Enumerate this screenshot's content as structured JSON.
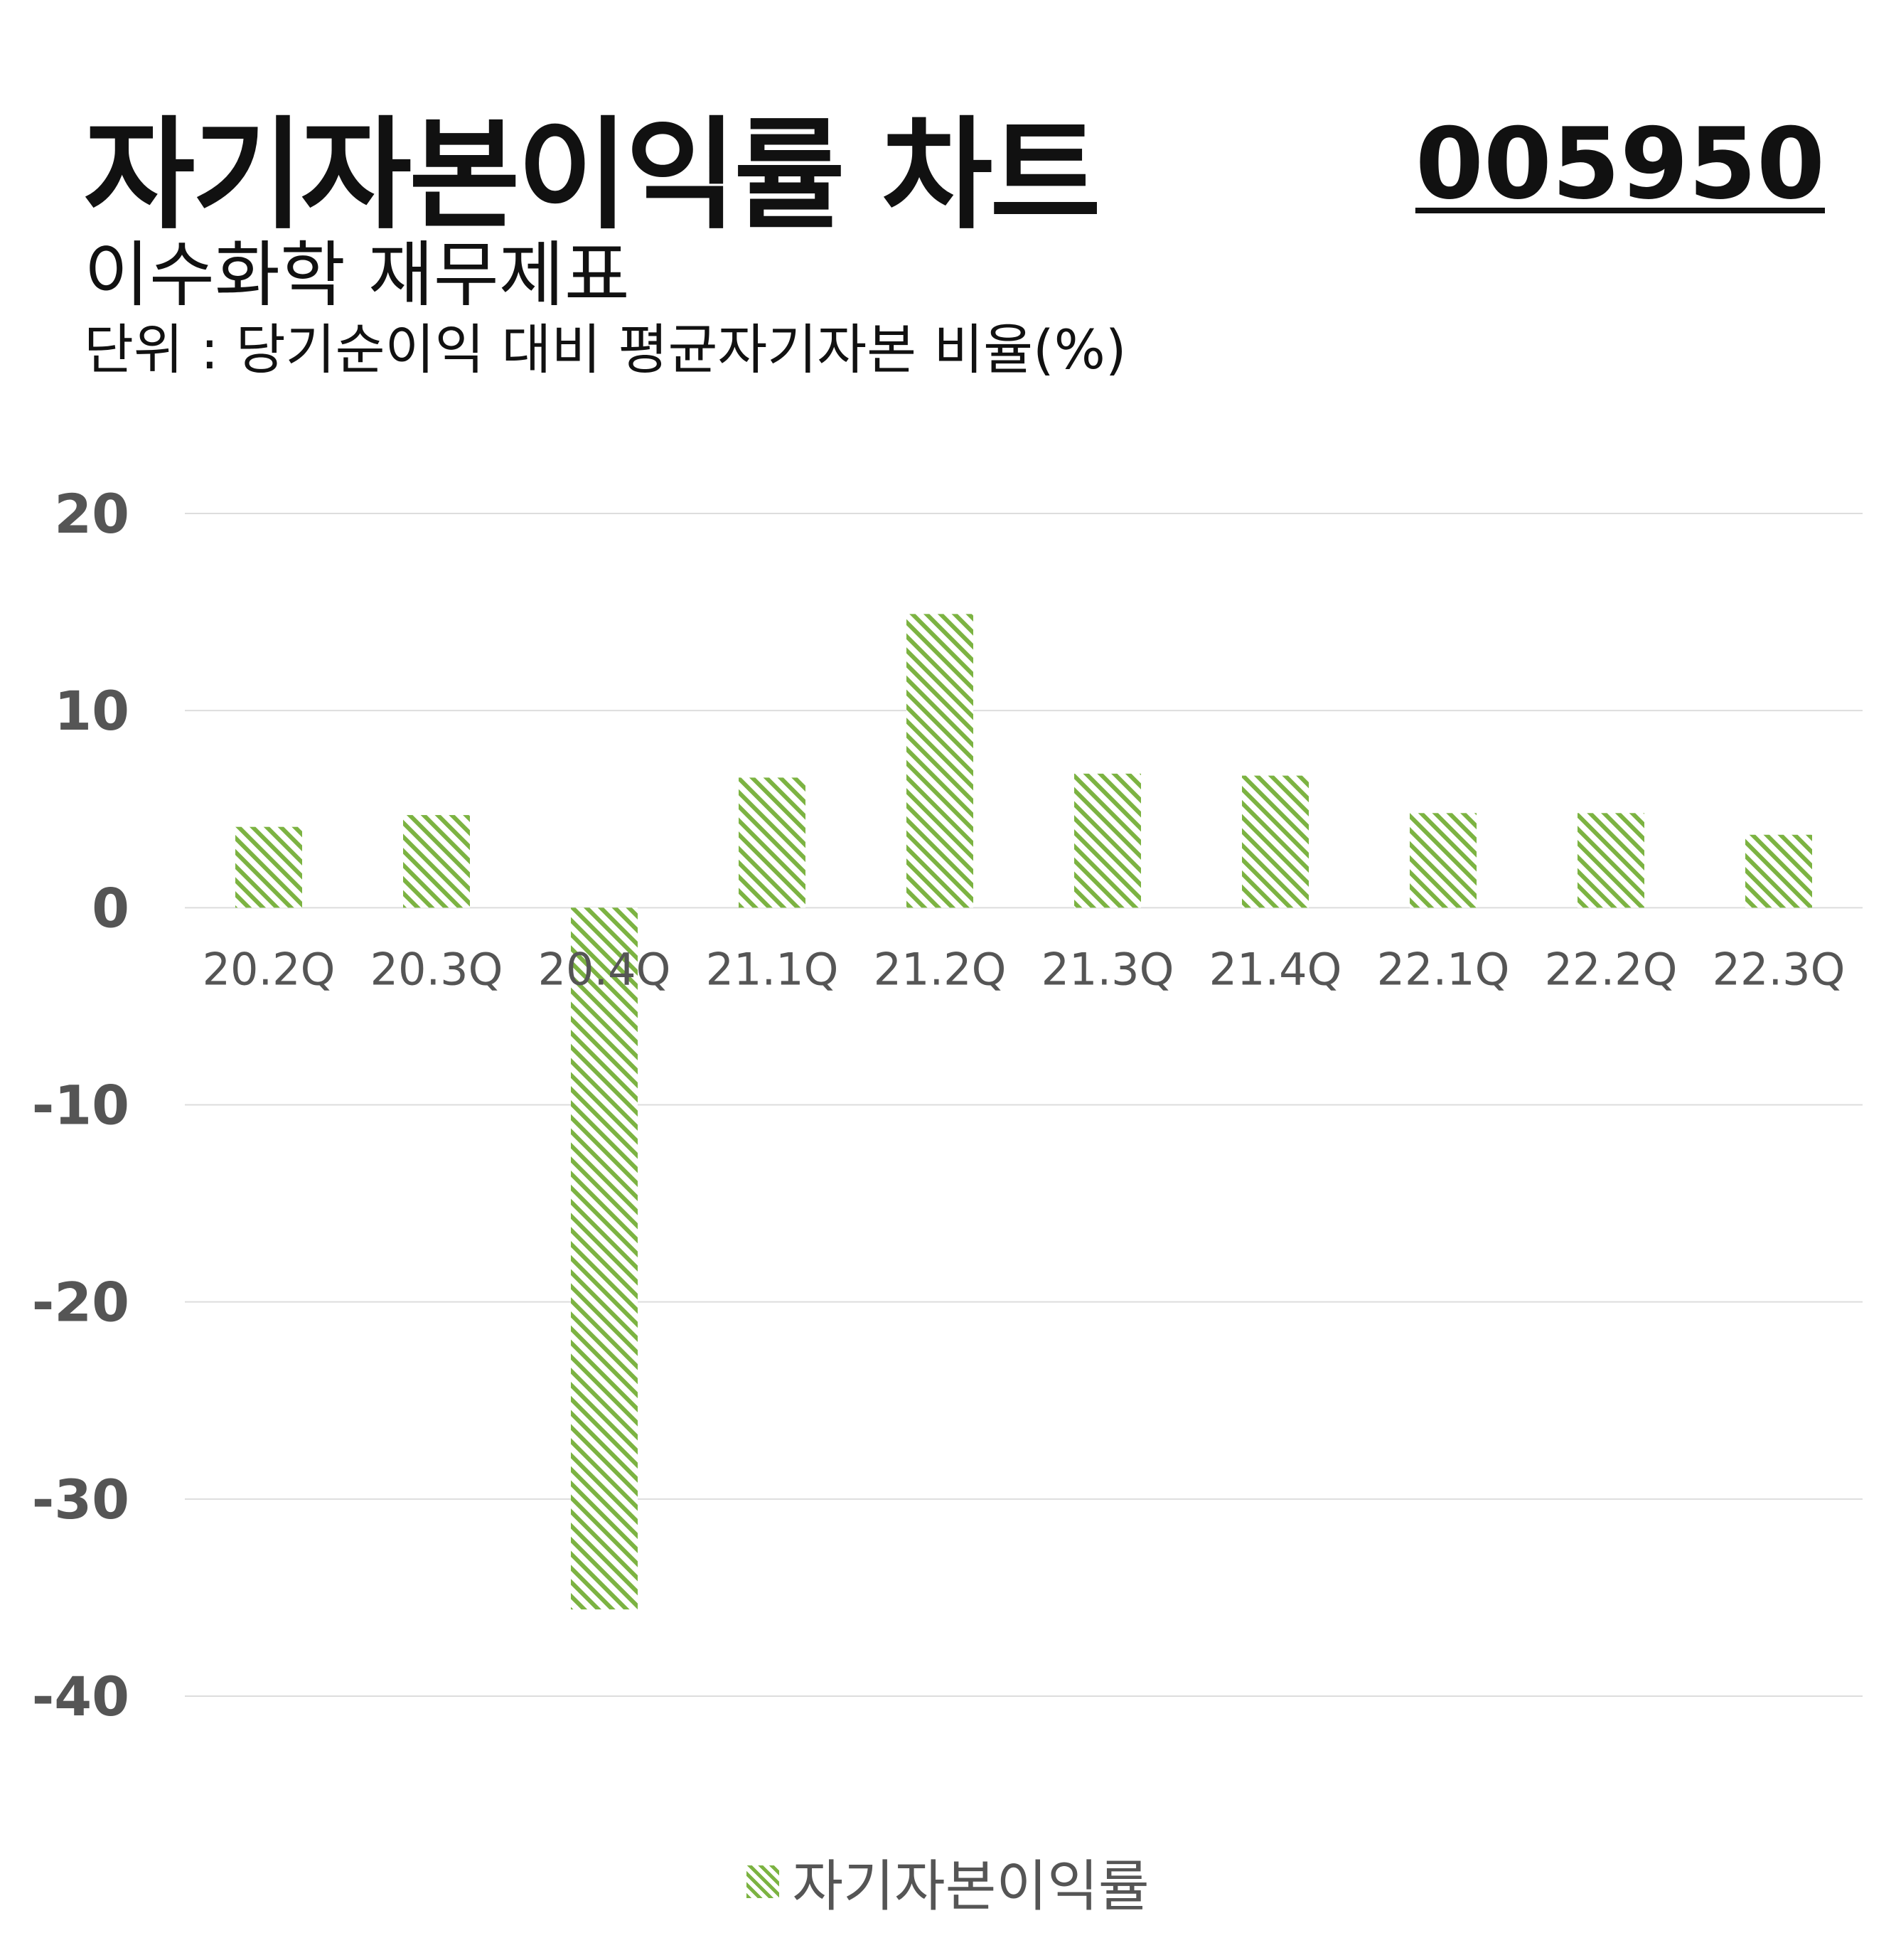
{
  "header": {
    "title": "자기자본이익률 차트",
    "stock_code": "005950",
    "subtitle": "이수화학 재무제표",
    "unit": "단위 : 당기순이익 대비 평균자기자본 비율(%)"
  },
  "colors": {
    "bar": "#7cb342",
    "grid": "#dddddd",
    "axis_text": "#555555"
  },
  "chart_data": {
    "type": "bar",
    "categories": [
      "20.2Q",
      "20.3Q",
      "20.4Q",
      "21.1Q",
      "21.2Q",
      "21.3Q",
      "21.4Q",
      "22.1Q",
      "22.2Q",
      "22.3Q"
    ],
    "series": [
      {
        "name": "자기자본이익률",
        "values": [
          4.1,
          4.7,
          -35.6,
          6.6,
          14.9,
          6.8,
          6.7,
          4.8,
          4.8,
          3.7
        ]
      }
    ],
    "yticks": [
      20,
      10,
      0,
      -10,
      -20,
      -30,
      -40
    ],
    "ylim": [
      -40,
      20
    ],
    "grid": true,
    "bar_pattern": "diagonal-hatch",
    "legend_position": "bottom-center"
  }
}
